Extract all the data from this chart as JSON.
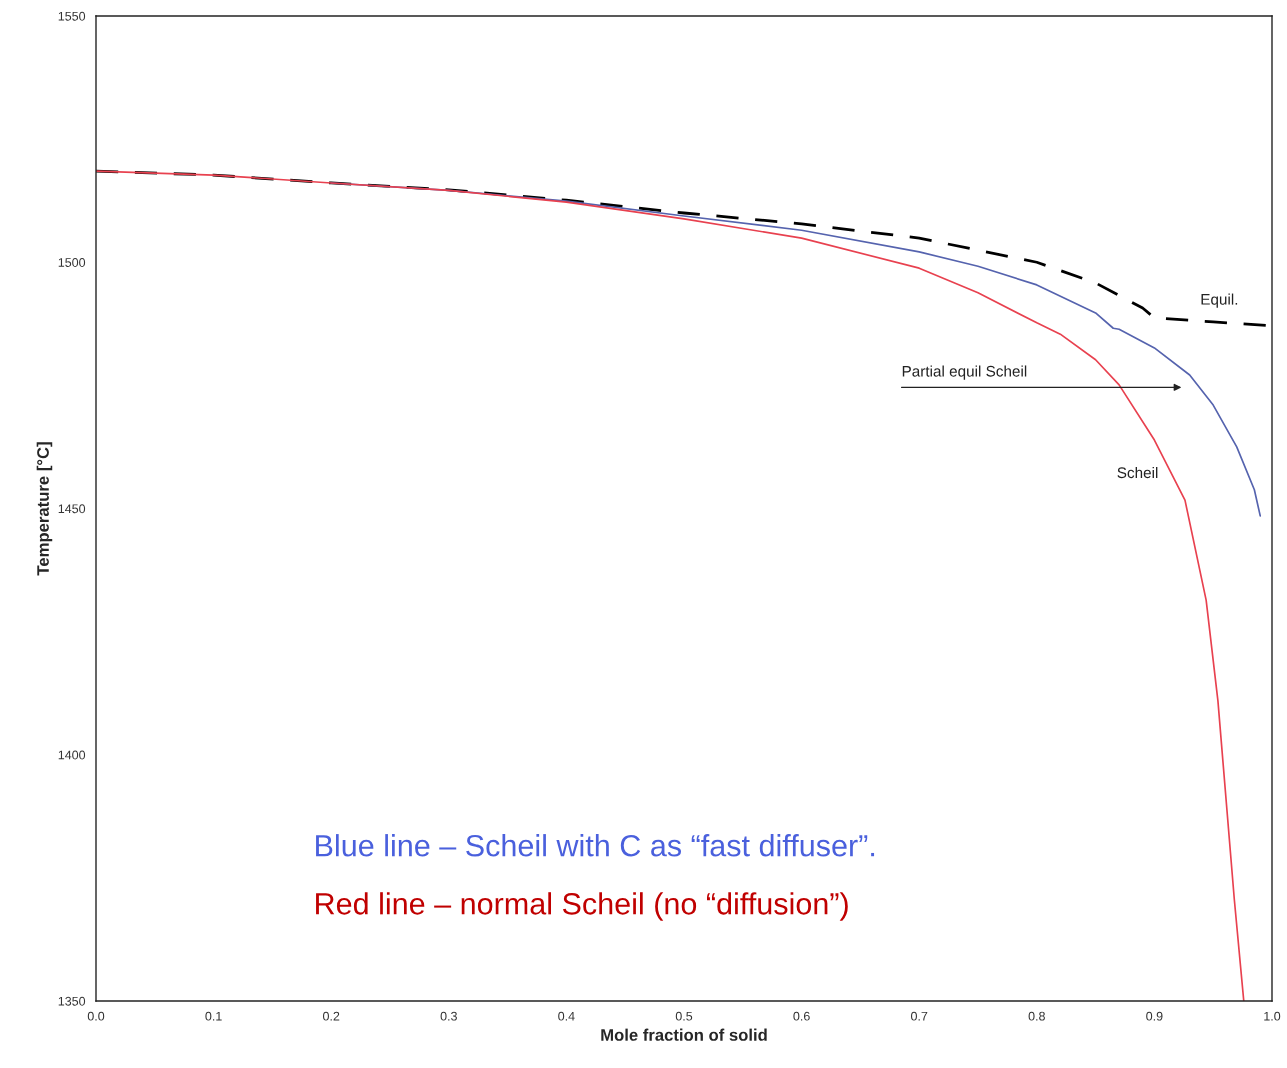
{
  "chart_data": {
    "type": "line",
    "xlabel": "Mole fraction of solid",
    "ylabel": "Temperature [°C]",
    "xlim": [
      0,
      1.0
    ],
    "ylim": [
      1350,
      1550
    ],
    "xticks": [
      {
        "value": 0,
        "label": "0.0"
      },
      0.1,
      0.2,
      0.3,
      0.4,
      0.5,
      0.6,
      0.7,
      0.8,
      0.9,
      {
        "value": 1,
        "label": "1.0"
      }
    ],
    "yticks": [
      1350,
      1400,
      1450,
      1500,
      1550
    ],
    "grid": false,
    "legend": false,
    "series": [
      {
        "color": "#000000",
        "line_style": "dashed",
        "x": [
          0,
          0.1,
          0.2,
          0.3,
          0.4,
          0.5,
          0.6,
          0.7,
          0.8,
          0.85,
          0.89,
          0.9,
          0.95,
          1.0
        ],
        "values": [
          1518.5,
          1517.7,
          1516.1,
          1514.7,
          1512.6,
          1510.0,
          1507.8,
          1504.9,
          1500.0,
          1495.8,
          1490.7,
          1488.7,
          1487.9,
          1487.1
        ]
      },
      {
        "color": "#5563ae",
        "line_style": "solid",
        "x": [
          0.2,
          0.3,
          0.4,
          0.5,
          0.6,
          0.7,
          0.75,
          0.8,
          0.85,
          0.865,
          0.87,
          0.9,
          0.93,
          0.95,
          0.97,
          0.985,
          0.99
        ],
        "values": [
          1516.1,
          1514.6,
          1512.4,
          1509.4,
          1506.5,
          1502.1,
          1499.2,
          1495.4,
          1489.7,
          1486.6,
          1486.4,
          1482.6,
          1477.1,
          1471.0,
          1462.5,
          1453.8,
          1448.5
        ]
      },
      {
        "color": "#e8414f",
        "line_style": "solid",
        "x": [
          0,
          0.1,
          0.2,
          0.3,
          0.4,
          0.5,
          0.6,
          0.7,
          0.75,
          0.8,
          0.82,
          0.85,
          0.87,
          0.9,
          0.926,
          0.944,
          0.954,
          0.968,
          0.976
        ],
        "values": [
          1518.5,
          1517.7,
          1516.1,
          1514.6,
          1512.2,
          1508.8,
          1504.9,
          1498.8,
          1493.8,
          1487.7,
          1485.4,
          1480.2,
          1475.1,
          1463.9,
          1451.7,
          1431.4,
          1411.0,
          1370.5,
          1350
        ]
      }
    ],
    "annotations": [
      "Equil.",
      "Partial equil Scheil",
      "Scheil",
      "Blue line – Scheil with C as “fast diffuser”.",
      "Red line – normal Scheil (no “diffusion”)"
    ]
  }
}
